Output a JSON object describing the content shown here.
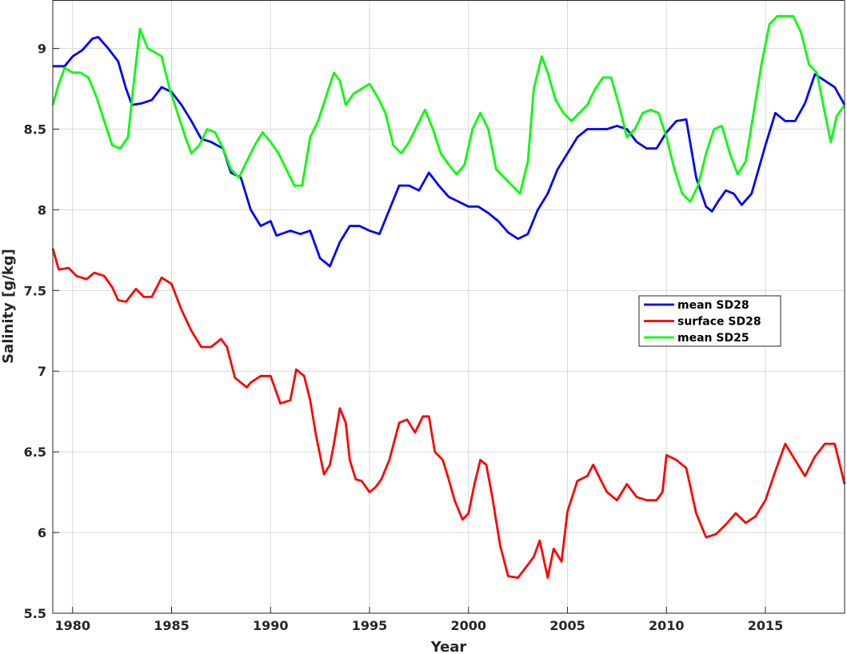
{
  "chart_data": {
    "type": "line",
    "xlabel": "Year",
    "ylabel": "Salinity [g/kg]",
    "xlim": [
      1979,
      2019
    ],
    "ylim": [
      5.5,
      9.3
    ],
    "xticks": [
      1980,
      1985,
      1990,
      1995,
      2000,
      2005,
      2010,
      2015
    ],
    "xtick_labels": [
      "1980",
      "1985",
      "1990",
      "1995",
      "2000",
      "2005",
      "2010",
      "2015"
    ],
    "yticks": [
      5.5,
      6,
      6.5,
      7,
      7.5,
      8,
      8.5,
      9
    ],
    "ytick_labels": [
      "5.5",
      "6",
      "6.5",
      "7",
      "7.5",
      "8",
      "8.5",
      "9"
    ],
    "grid": true,
    "legend_position": "right-center",
    "series": [
      {
        "name": "mean SD28",
        "color": "#0000ff",
        "x": [
          1979.0,
          1979.6,
          1980.0,
          1980.5,
          1981.0,
          1981.3,
          1981.8,
          1982.3,
          1982.7,
          1983.0,
          1983.5,
          1984.0,
          1984.5,
          1985.0,
          1985.5,
          1986.0,
          1986.5,
          1987.0,
          1987.6,
          1988.0,
          1988.5,
          1989.0,
          1989.5,
          1990.0,
          1990.3,
          1991.0,
          1991.5,
          1992.0,
          1992.5,
          1993.0,
          1993.5,
          1994.0,
          1994.5,
          1995.0,
          1995.5,
          1996.0,
          1996.5,
          1997.0,
          1997.5,
          1998.0,
          1998.5,
          1999.0,
          1999.5,
          2000.0,
          2000.5,
          2001.0,
          2001.5,
          2002.0,
          2002.5,
          2003.0,
          2003.5,
          2004.0,
          2004.5,
          2005.0,
          2005.5,
          2006.0,
          2006.5,
          2007.0,
          2007.5,
          2008.0,
          2008.5,
          2009.0,
          2009.5,
          2010.0,
          2010.5,
          2011.0,
          2011.5,
          2012.0,
          2012.3,
          2012.6,
          2013.0,
          2013.4,
          2013.8,
          2014.3,
          2015.0,
          2015.5,
          2016.0,
          2016.5,
          2017.0,
          2017.5,
          2018.0,
          2018.5,
          2019.0
        ],
        "y": [
          8.89,
          8.89,
          8.95,
          8.99,
          9.06,
          9.07,
          9.0,
          8.92,
          8.75,
          8.65,
          8.66,
          8.68,
          8.76,
          8.73,
          8.65,
          8.55,
          8.44,
          8.42,
          8.38,
          8.23,
          8.2,
          8.0,
          7.9,
          7.93,
          7.84,
          7.87,
          7.85,
          7.87,
          7.7,
          7.65,
          7.8,
          7.9,
          7.9,
          7.87,
          7.85,
          8.0,
          8.15,
          8.15,
          8.12,
          8.23,
          8.15,
          8.08,
          8.05,
          8.02,
          8.02,
          7.98,
          7.93,
          7.86,
          7.82,
          7.85,
          8.0,
          8.1,
          8.25,
          8.35,
          8.45,
          8.5,
          8.5,
          8.5,
          8.52,
          8.5,
          8.42,
          8.38,
          8.38,
          8.48,
          8.55,
          8.56,
          8.2,
          8.02,
          7.99,
          8.05,
          8.12,
          8.1,
          8.03,
          8.1,
          8.4,
          8.6,
          8.55,
          8.55,
          8.66,
          8.84,
          8.8,
          8.76,
          8.65
        ]
      },
      {
        "name": "surface SD28",
        "color": "#ff0000",
        "x": [
          1979.0,
          1979.3,
          1979.8,
          1980.2,
          1980.7,
          1981.1,
          1981.6,
          1982.0,
          1982.3,
          1982.7,
          1983.2,
          1983.6,
          1984.0,
          1984.5,
          1985.0,
          1985.5,
          1986.0,
          1986.5,
          1987.0,
          1987.5,
          1987.8,
          1988.2,
          1988.5,
          1988.8,
          1989.0,
          1989.5,
          1990.0,
          1990.5,
          1991.0,
          1991.3,
          1991.7,
          1992.0,
          1992.3,
          1992.7,
          1993.0,
          1993.2,
          1993.5,
          1993.8,
          1994.0,
          1994.3,
          1994.6,
          1995.0,
          1995.3,
          1995.6,
          1996.0,
          1996.5,
          1996.9,
          1997.3,
          1997.7,
          1998.0,
          1998.3,
          1998.7,
          1999.0,
          1999.3,
          1999.7,
          2000.0,
          2000.3,
          2000.6,
          2000.9,
          2001.2,
          2001.6,
          2002.0,
          2002.5,
          2003.0,
          2003.3,
          2003.6,
          2004.0,
          2004.3,
          2004.7,
          2005.0,
          2005.5,
          2006.0,
          2006.3,
          2006.7,
          2007.0,
          2007.5,
          2008.0,
          2008.5,
          2009.0,
          2009.5,
          2009.8,
          2010.0,
          2010.5,
          2011.0,
          2011.5,
          2012.0,
          2012.5,
          2013.0,
          2013.5,
          2014.0,
          2014.5,
          2015.0,
          2015.5,
          2016.0,
          2016.5,
          2017.0,
          2017.5,
          2018.0,
          2018.5,
          2019.0
        ],
        "y": [
          7.76,
          7.63,
          7.64,
          7.59,
          7.57,
          7.61,
          7.59,
          7.52,
          7.44,
          7.43,
          7.51,
          7.46,
          7.46,
          7.58,
          7.54,
          7.38,
          7.25,
          7.15,
          7.15,
          7.2,
          7.15,
          6.96,
          6.93,
          6.9,
          6.93,
          6.97,
          6.97,
          6.8,
          6.82,
          7.01,
          6.97,
          6.82,
          6.6,
          6.36,
          6.42,
          6.55,
          6.77,
          6.68,
          6.45,
          6.33,
          6.32,
          6.25,
          6.28,
          6.33,
          6.45,
          6.68,
          6.7,
          6.62,
          6.72,
          6.72,
          6.5,
          6.45,
          6.33,
          6.2,
          6.08,
          6.12,
          6.3,
          6.45,
          6.42,
          6.22,
          5.92,
          5.73,
          5.72,
          5.8,
          5.85,
          5.95,
          5.72,
          5.9,
          5.82,
          6.13,
          6.32,
          6.35,
          6.42,
          6.32,
          6.25,
          6.2,
          6.3,
          6.22,
          6.2,
          6.2,
          6.25,
          6.48,
          6.45,
          6.4,
          6.12,
          5.97,
          5.99,
          6.05,
          6.12,
          6.06,
          6.1,
          6.2,
          6.38,
          6.55,
          6.45,
          6.35,
          6.47,
          6.55,
          6.55,
          6.3
        ]
      },
      {
        "name": "mean SD25",
        "color": "#00ff00",
        "x": [
          1979.0,
          1979.3,
          1979.6,
          1980.0,
          1980.4,
          1980.8,
          1981.2,
          1981.6,
          1982.0,
          1982.4,
          1982.8,
          1983.1,
          1983.4,
          1983.8,
          1984.1,
          1984.5,
          1984.9,
          1985.3,
          1985.7,
          1986.0,
          1986.4,
          1986.8,
          1987.2,
          1987.6,
          1988.0,
          1988.4,
          1988.8,
          1989.2,
          1989.6,
          1990.0,
          1990.4,
          1990.8,
          1991.2,
          1991.6,
          1992.0,
          1992.4,
          1992.8,
          1993.2,
          1993.5,
          1993.8,
          1994.2,
          1994.6,
          1995.0,
          1995.4,
          1995.8,
          1996.2,
          1996.6,
          1997.0,
          1997.4,
          1997.8,
          1998.2,
          1998.6,
          1999.0,
          1999.4,
          1999.8,
          2000.2,
          2000.6,
          2001.0,
          2001.4,
          2001.8,
          2002.2,
          2002.6,
          2003.0,
          2003.3,
          2003.7,
          2004.0,
          2004.4,
          2004.8,
          2005.2,
          2005.6,
          2006.0,
          2006.4,
          2006.8,
          2007.2,
          2007.6,
          2008.0,
          2008.4,
          2008.8,
          2009.2,
          2009.6,
          2010.0,
          2010.4,
          2010.8,
          2011.2,
          2011.6,
          2012.0,
          2012.4,
          2012.8,
          2013.2,
          2013.6,
          2014.0,
          2014.4,
          2014.8,
          2015.2,
          2015.6,
          2016.0,
          2016.4,
          2016.8,
          2017.2,
          2017.6,
          2018.0,
          2018.3,
          2018.6,
          2019.0
        ],
        "y": [
          8.65,
          8.78,
          8.88,
          8.85,
          8.85,
          8.82,
          8.7,
          8.55,
          8.4,
          8.38,
          8.45,
          8.8,
          9.12,
          9.0,
          8.98,
          8.95,
          8.75,
          8.6,
          8.45,
          8.35,
          8.4,
          8.5,
          8.48,
          8.38,
          8.25,
          8.2,
          8.3,
          8.4,
          8.48,
          8.42,
          8.35,
          8.25,
          8.15,
          8.15,
          8.45,
          8.55,
          8.7,
          8.85,
          8.8,
          8.65,
          8.72,
          8.75,
          8.78,
          8.7,
          8.6,
          8.4,
          8.35,
          8.42,
          8.52,
          8.62,
          8.5,
          8.35,
          8.28,
          8.22,
          8.28,
          8.5,
          8.6,
          8.5,
          8.25,
          8.2,
          8.15,
          8.1,
          8.3,
          8.75,
          8.95,
          8.85,
          8.68,
          8.6,
          8.55,
          8.6,
          8.65,
          8.75,
          8.82,
          8.82,
          8.65,
          8.45,
          8.5,
          8.6,
          8.62,
          8.6,
          8.45,
          8.25,
          8.1,
          8.05,
          8.15,
          8.35,
          8.5,
          8.52,
          8.35,
          8.22,
          8.3,
          8.6,
          8.9,
          9.15,
          9.2,
          9.2,
          9.2,
          9.1,
          8.9,
          8.85,
          8.6,
          8.42,
          8.58,
          8.65
        ]
      }
    ]
  }
}
